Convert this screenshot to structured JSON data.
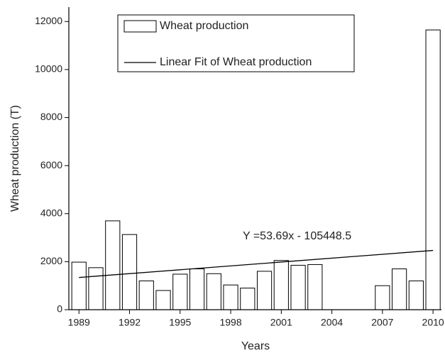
{
  "chart_data": {
    "type": "bar",
    "x_label": "Years",
    "y_label": "Wheat production (T)",
    "x": [
      1989,
      1990,
      1991,
      1992,
      1993,
      1994,
      1995,
      1996,
      1997,
      1998,
      1999,
      2000,
      2001,
      2002,
      2003,
      2007,
      2008,
      2009,
      2010
    ],
    "series": [
      {
        "name": "Wheat production",
        "color": "#ffffff",
        "values": [
          1980,
          1750,
          3700,
          3130,
          1200,
          800,
          1480,
          1700,
          1500,
          1030,
          900,
          1600,
          2050,
          1850,
          1880,
          1000,
          1700,
          1200,
          11650
        ]
      },
      {
        "name": "Linear Fit of Wheat production",
        "type": "line",
        "color": "#000000",
        "x": [
          1989,
          2010
        ],
        "values": [
          1340.9,
          2468.0
        ]
      }
    ],
    "fit_label": "Y =53.69x - 105448.5",
    "xlim": [
      1988.4,
      2010.5
    ],
    "xticks": [
      1989,
      1992,
      1995,
      1998,
      2001,
      2004,
      2007,
      2010
    ],
    "ylim": [
      0,
      12600
    ],
    "yticks": [
      0,
      2000,
      4000,
      6000,
      8000,
      10000,
      12000
    ],
    "grid": false
  }
}
